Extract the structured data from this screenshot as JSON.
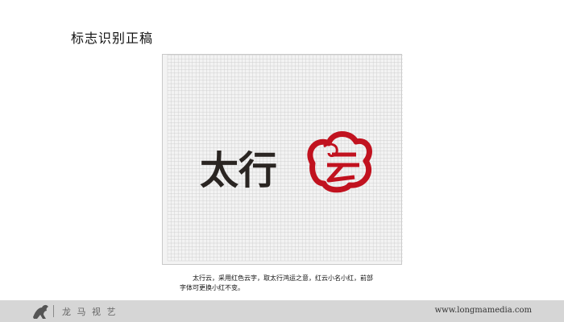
{
  "page": {
    "title": "标志识别正稿"
  },
  "logo": {
    "wordmark": "太行",
    "symbol_char": "云",
    "wordmark_color": "#2a2522",
    "symbol_color": "#c1121f"
  },
  "grid": {
    "background": "#f3f3f3",
    "line_color": "#d0d0d0"
  },
  "caption": {
    "line1": "太行云，采用红色云字，取太行鸿运之意，红云小名小红，前部",
    "line2": "字体可更换小红不变。"
  },
  "footer": {
    "brand": "龙 马 视 艺",
    "url": "www.longmamedia.com",
    "logo_icon": "horse-icon"
  }
}
